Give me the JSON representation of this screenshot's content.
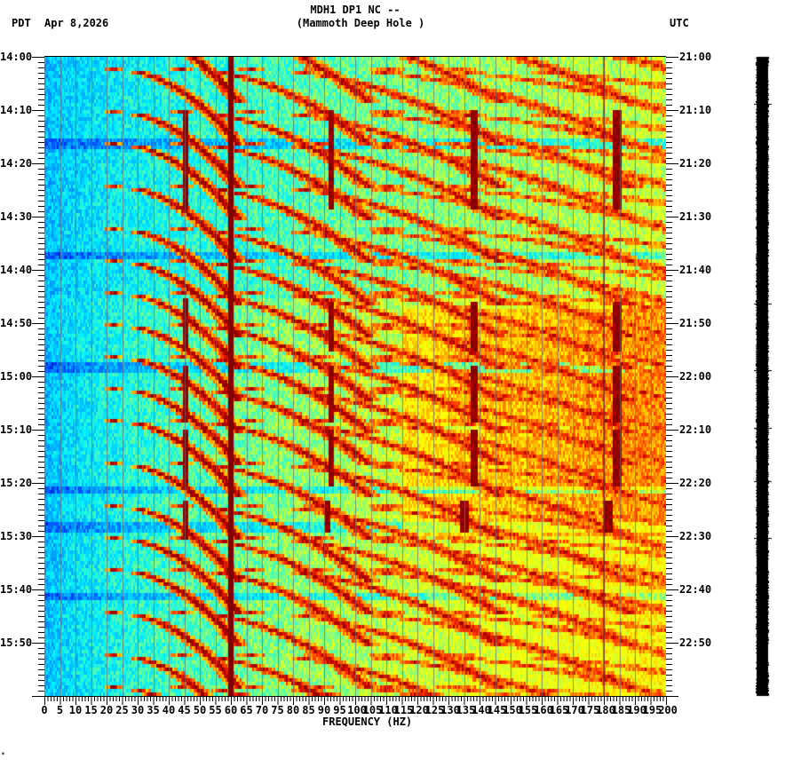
{
  "header": {
    "title_line1": "MDH1 DP1 NC --",
    "title_line2": "(Mammoth Deep Hole )",
    "left_timezone": "PDT",
    "date": "Apr 8,2026",
    "right_timezone": "UTC"
  },
  "footer": {
    "corner_mark": "*"
  },
  "chart_data": {
    "type": "heatmap",
    "title": "MDH1 DP1 NC -- (Mammoth Deep Hole )",
    "subtitle": "Apr 8,2026",
    "xlabel": "FREQUENCY (HZ)",
    "ylabel_left": "PDT",
    "ylabel_right": "UTC",
    "xlim": [
      0,
      200
    ],
    "x_ticks": [
      0,
      5,
      10,
      15,
      20,
      25,
      30,
      35,
      40,
      45,
      50,
      55,
      60,
      65,
      70,
      75,
      80,
      85,
      90,
      95,
      100,
      105,
      110,
      115,
      120,
      125,
      130,
      135,
      140,
      145,
      150,
      155,
      160,
      165,
      170,
      175,
      180,
      185,
      190,
      195,
      200
    ],
    "x_tick_labels": [
      "0",
      "5",
      "10",
      "15",
      "20",
      "25",
      "30",
      "35",
      "40",
      "45",
      "50",
      "55",
      "60",
      "65",
      "70",
      "75",
      "80",
      "85",
      "90",
      "95",
      "100",
      "105",
      "110",
      "115",
      "120",
      "125",
      "130",
      "135",
      "140",
      "145",
      "150",
      "155",
      "160",
      "165",
      "170",
      "175",
      "180",
      "185",
      "190",
      "195",
      "200"
    ],
    "x_minor_tick_step": 1,
    "y_time_range_minutes": 120,
    "y_ticks_left": [
      "14:00",
      "14:10",
      "14:20",
      "14:30",
      "14:40",
      "14:50",
      "15:00",
      "15:10",
      "15:20",
      "15:30",
      "15:40",
      "15:50"
    ],
    "y_ticks_right": [
      "21:00",
      "21:10",
      "21:20",
      "21:30",
      "21:40",
      "21:50",
      "22:00",
      "22:10",
      "22:20",
      "22:30",
      "22:40",
      "22:50"
    ],
    "y_minor_tick_step_minutes": 1,
    "colormap": "jet",
    "colormap_stops": [
      "#0000c8",
      "#0050ff",
      "#00a8ff",
      "#00f0ff",
      "#60ffa0",
      "#d0ff30",
      "#ffff00",
      "#ffa000",
      "#ff3000",
      "#b00000",
      "#800000"
    ],
    "background_gradient": {
      "description": "Power rises with frequency: blue at 0-20 Hz, cyan/green 30-120 Hz, green-yellow 120-200 Hz; second hour brighter at high frequency",
      "level_at_0hz": 0.22,
      "level_at_200hz_first_hour": 0.5,
      "level_at_200hz_second_hour": 0.6
    },
    "persistent_lines": [
      {
        "freq_hz": 60,
        "width_hz": 1.8,
        "color": "#800000",
        "label": "60 Hz power line"
      },
      {
        "freq_hz": 180,
        "width_hz": 0.3,
        "color": "#700000",
        "label": "180 Hz harmonic"
      }
    ],
    "grid_lines_hz_step": 5,
    "arc_series": {
      "description": "Repeating gliding tones sweeping upward in frequency over ~10 minutes each, as curved arcs",
      "start_minutes": [
        -6,
        2,
        10,
        16,
        24,
        32,
        38,
        44,
        50,
        56,
        62,
        68,
        76,
        84,
        90,
        96,
        104,
        112,
        118
      ],
      "harmonic_start_freqs_hz": [
        22,
        44,
        66,
        88,
        110,
        132
      ],
      "sweep_span_hz": 40,
      "duration_minutes": 14
    },
    "vertical_bursts": [
      {
        "freq_hz": 45,
        "start_min": 10,
        "end_min": 28
      },
      {
        "freq_hz": 92,
        "start_min": 10,
        "end_min": 28
      },
      {
        "freq_hz": 138,
        "start_min": 10,
        "end_min": 28
      },
      {
        "freq_hz": 184,
        "start_min": 10,
        "end_min": 28
      },
      {
        "freq_hz": 45,
        "start_min": 45,
        "end_min": 55
      },
      {
        "freq_hz": 92,
        "start_min": 46,
        "end_min": 55
      },
      {
        "freq_hz": 138,
        "start_min": 46,
        "end_min": 55
      },
      {
        "freq_hz": 184,
        "start_min": 46,
        "end_min": 55
      },
      {
        "freq_hz": 45,
        "start_min": 58,
        "end_min": 68
      },
      {
        "freq_hz": 92,
        "start_min": 58,
        "end_min": 68
      },
      {
        "freq_hz": 138,
        "start_min": 58,
        "end_min": 68
      },
      {
        "freq_hz": 184,
        "start_min": 58,
        "end_min": 68
      },
      {
        "freq_hz": 45,
        "start_min": 70,
        "end_min": 80
      },
      {
        "freq_hz": 92,
        "start_min": 70,
        "end_min": 80
      },
      {
        "freq_hz": 138,
        "start_min": 70,
        "end_min": 80
      },
      {
        "freq_hz": 184,
        "start_min": 70,
        "end_min": 80
      },
      {
        "freq_hz": 45,
        "start_min": 83,
        "end_min": 90
      },
      {
        "freq_hz": 91,
        "start_min": 83,
        "end_min": 89
      },
      {
        "freq_hz": 135,
        "start_min": 83,
        "end_min": 89
      },
      {
        "freq_hz": 181,
        "start_min": 83,
        "end_min": 89
      }
    ],
    "bright_bands_minutes": [
      [
        47,
        57
      ],
      [
        59,
        69
      ],
      [
        70,
        81
      ],
      [
        82,
        90
      ]
    ],
    "dim_rows_minutes": [
      16,
      37,
      58,
      81,
      88,
      101
    ],
    "side_strip": {
      "color": "#000000",
      "description": "black amplitude strip on right"
    }
  }
}
